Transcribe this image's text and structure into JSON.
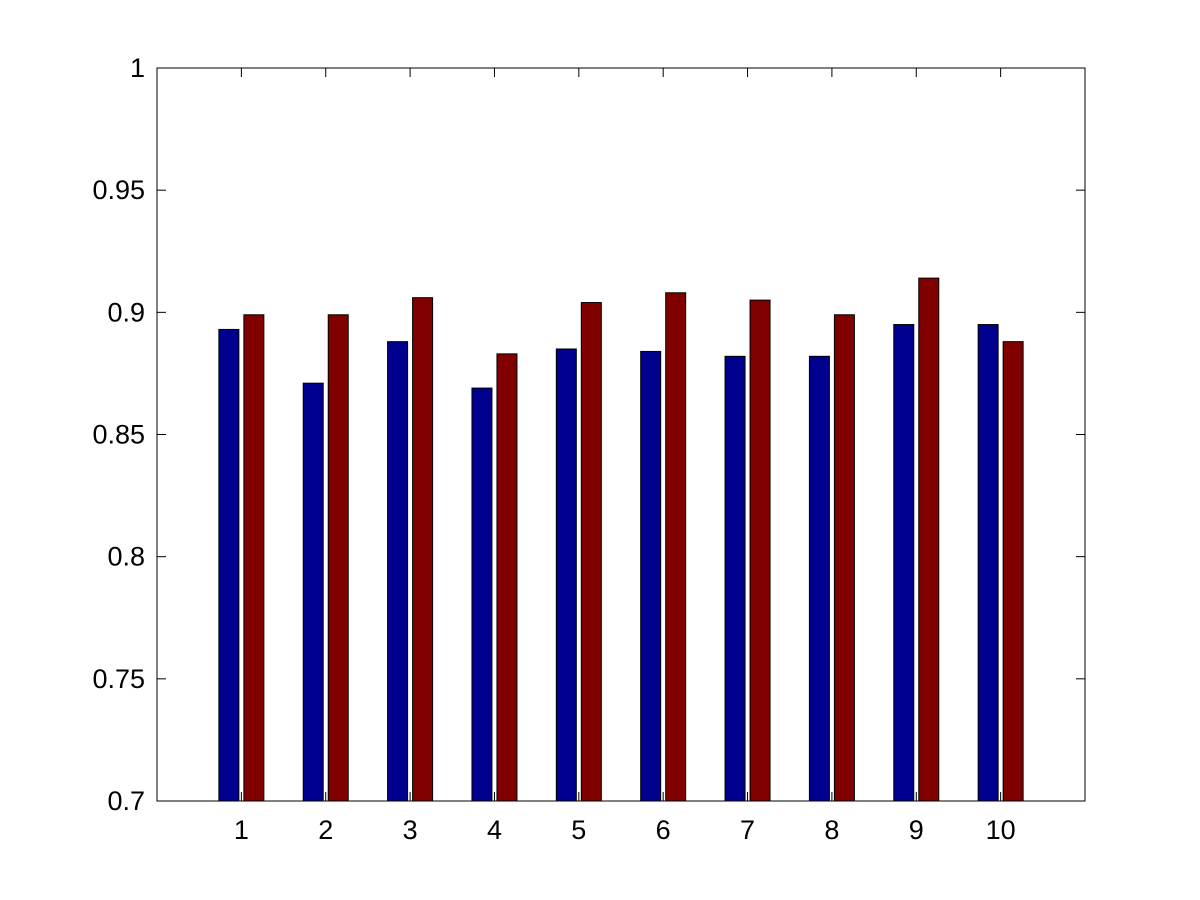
{
  "chart_data": {
    "type": "bar",
    "title": "",
    "xlabel": "",
    "ylabel": "",
    "categories": [
      "1",
      "2",
      "3",
      "4",
      "5",
      "6",
      "7",
      "8",
      "9",
      "10"
    ],
    "series": [
      {
        "color": "#00008f",
        "values": [
          0.893,
          0.871,
          0.888,
          0.869,
          0.885,
          0.884,
          0.882,
          0.882,
          0.895,
          0.895
        ]
      },
      {
        "color": "#800000",
        "values": [
          0.899,
          0.899,
          0.906,
          0.883,
          0.904,
          0.908,
          0.905,
          0.899,
          0.914,
          0.888
        ]
      }
    ],
    "ylim": [
      0.7,
      1
    ],
    "yticks": [
      "0.7",
      "0.75",
      "0.8",
      "0.85",
      "0.9",
      "0.95",
      "1"
    ],
    "grid": false,
    "legend": "none",
    "background": "#ffffff"
  }
}
